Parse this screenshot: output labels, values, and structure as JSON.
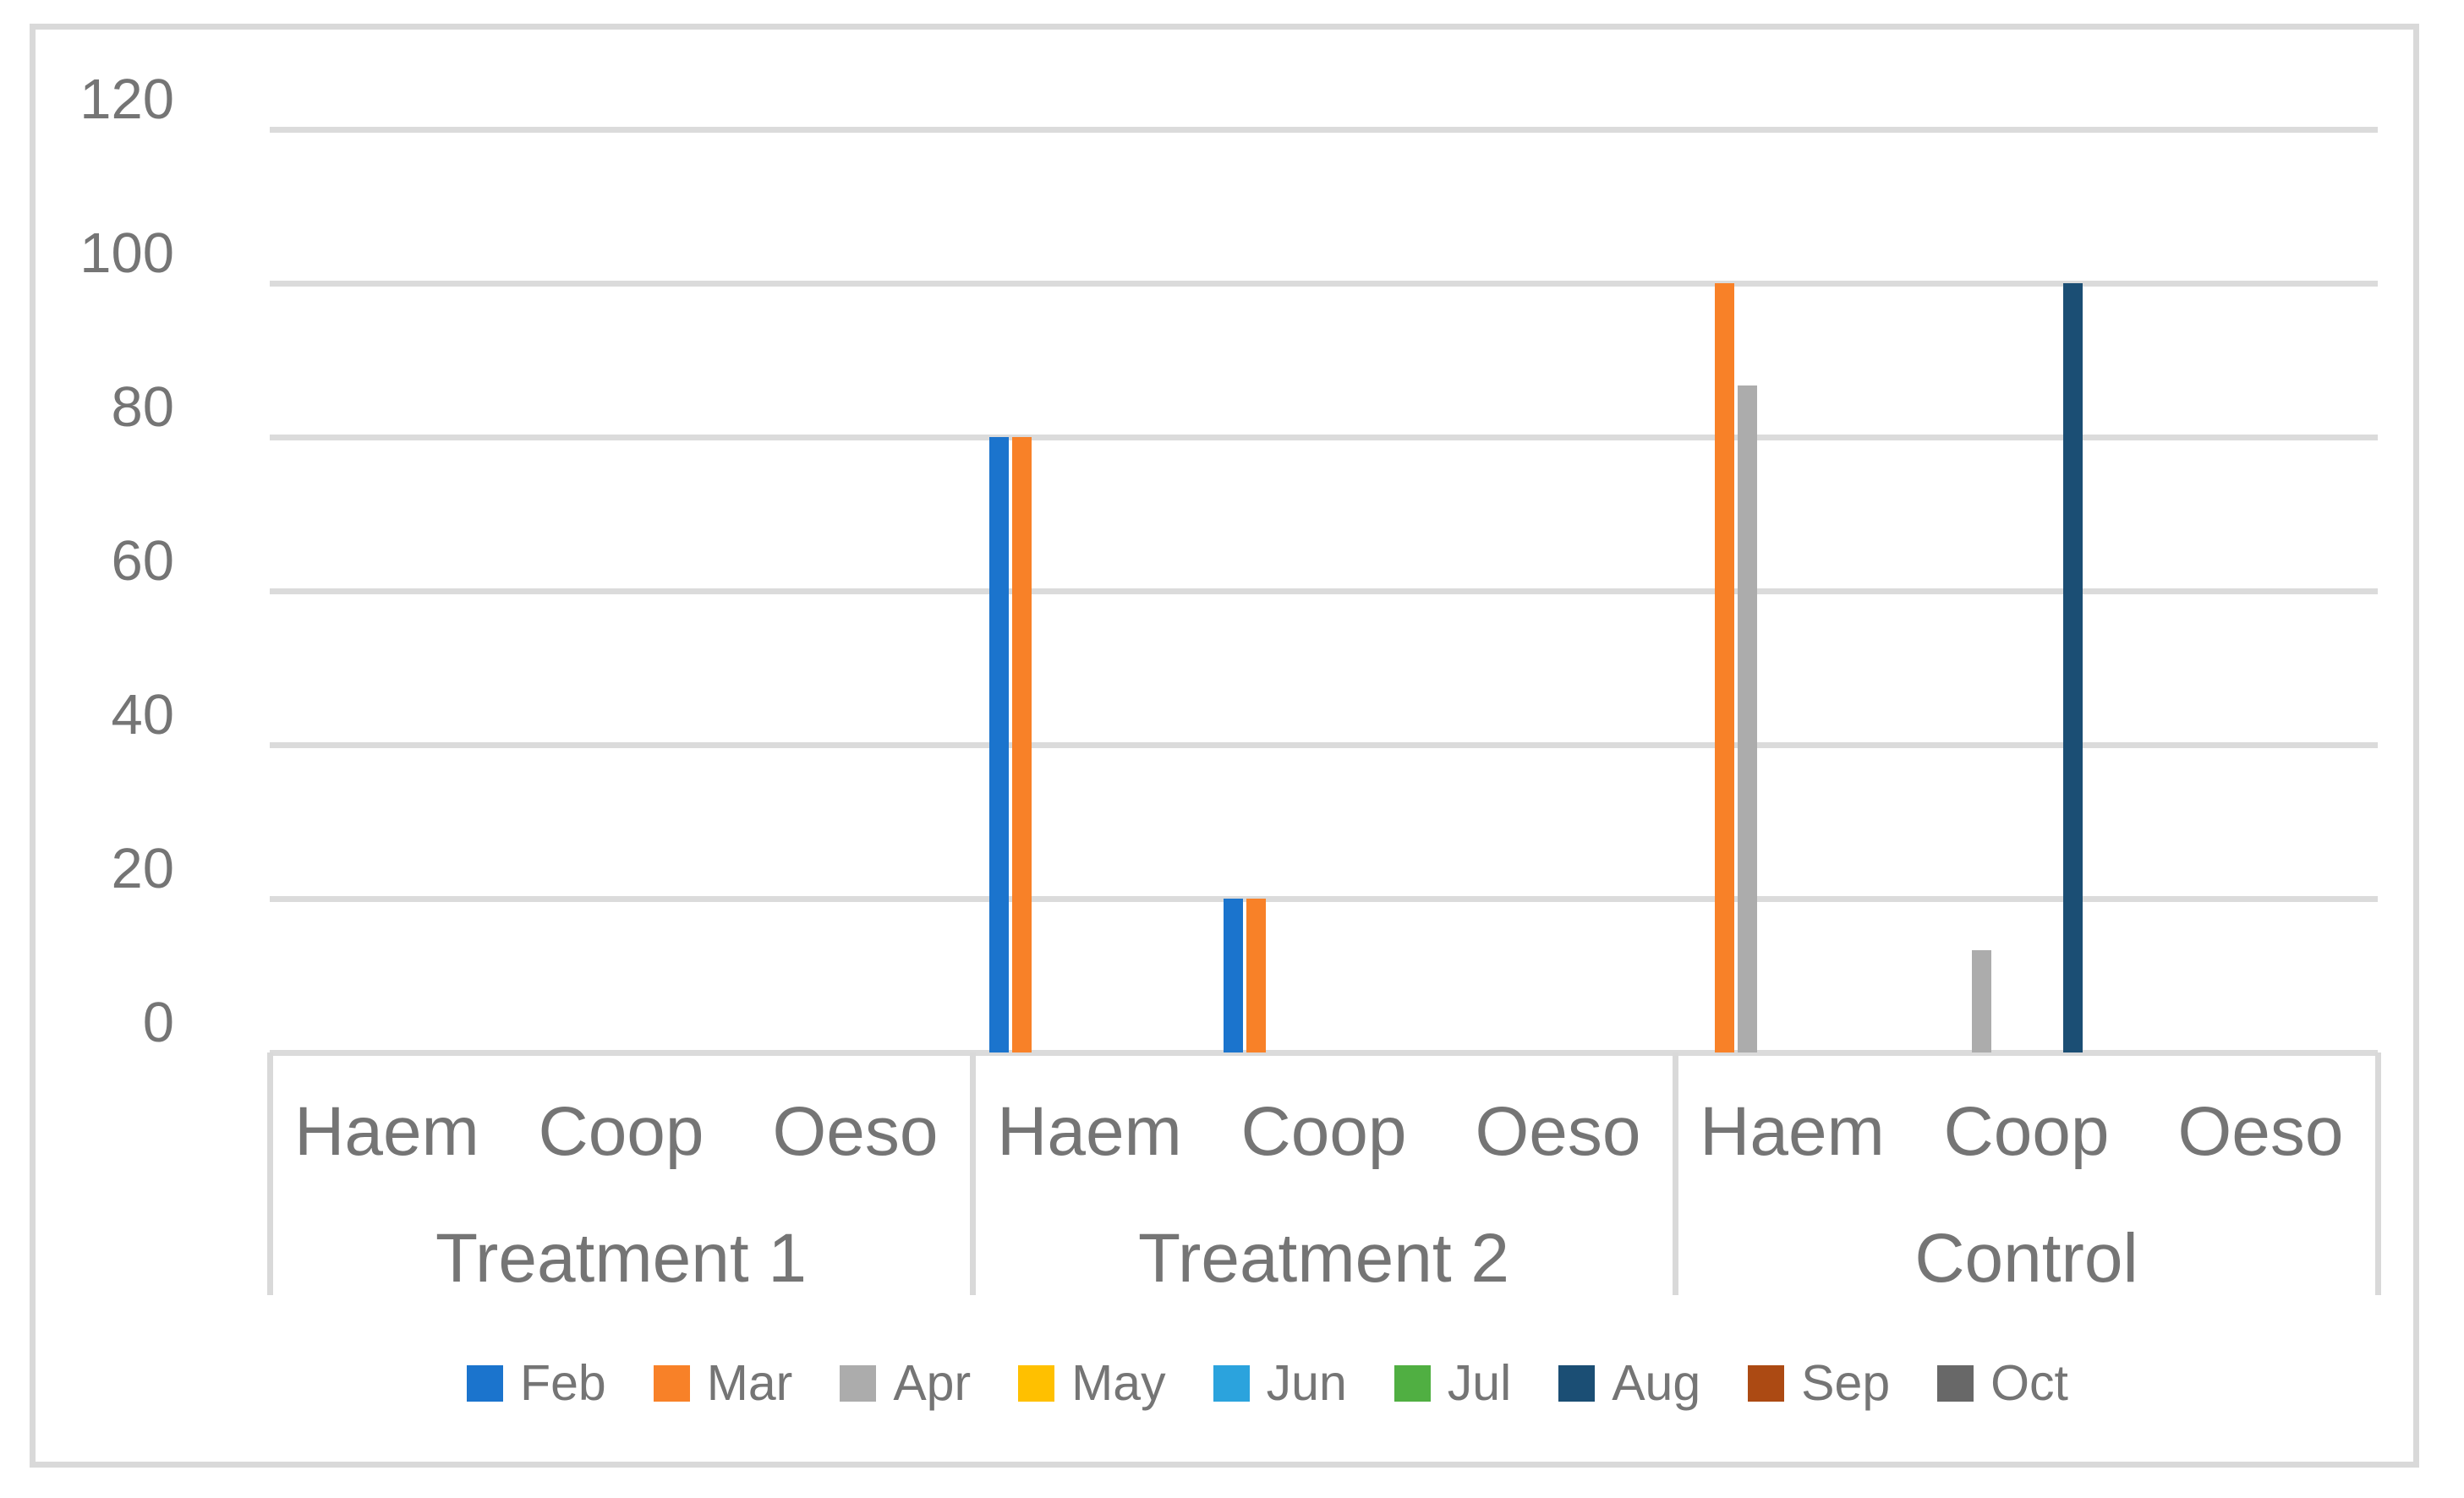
{
  "chart_data": {
    "type": "bar",
    "title": "",
    "xlabel": "",
    "ylabel": "",
    "ylim": [
      0,
      120
    ],
    "y_ticks": [
      120,
      100,
      80,
      60,
      40,
      20,
      0
    ],
    "grid": true,
    "legend_position": "bottom",
    "group_labels": [
      "Treatment 1",
      "Treatment 2",
      "Control"
    ],
    "category_labels": [
      "Haem",
      "Coop",
      "Oeso"
    ],
    "series": [
      {
        "name": "Feb",
        "color": "#1B74CD",
        "values": [
          [
            0,
            0,
            0
          ],
          [
            80,
            20,
            0
          ],
          [
            0,
            0,
            0
          ]
        ]
      },
      {
        "name": "Mar",
        "color": "#F88128",
        "values": [
          [
            0,
            0,
            0
          ],
          [
            80,
            20,
            0
          ],
          [
            100,
            0,
            0
          ]
        ]
      },
      {
        "name": "Apr",
        "color": "#ACACAC",
        "values": [
          [
            0,
            0,
            0
          ],
          [
            0,
            0,
            0
          ],
          [
            86.7,
            13.3,
            0
          ]
        ]
      },
      {
        "name": "May",
        "color": "#FFC000",
        "values": [
          [
            0,
            0,
            0
          ],
          [
            0,
            0,
            0
          ],
          [
            0,
            0,
            0
          ]
        ]
      },
      {
        "name": "Jun",
        "color": "#2BA3DD",
        "values": [
          [
            0,
            0,
            0
          ],
          [
            0,
            0,
            0
          ],
          [
            0,
            0,
            0
          ]
        ]
      },
      {
        "name": "Jul",
        "color": "#50AF42",
        "values": [
          [
            0,
            0,
            0
          ],
          [
            0,
            0,
            0
          ],
          [
            0,
            0,
            0
          ]
        ]
      },
      {
        "name": "Aug",
        "color": "#1B4E74",
        "values": [
          [
            0,
            0,
            0
          ],
          [
            0,
            0,
            0
          ],
          [
            0,
            100,
            0
          ]
        ]
      },
      {
        "name": "Sep",
        "color": "#AC4A13",
        "values": [
          [
            0,
            0,
            0
          ],
          [
            0,
            0,
            0
          ],
          [
            0,
            0,
            0
          ]
        ]
      },
      {
        "name": "Oct",
        "color": "#686868",
        "values": [
          [
            0,
            0,
            0
          ],
          [
            0,
            0,
            0
          ],
          [
            0,
            0,
            0
          ]
        ]
      }
    ]
  },
  "styles": {
    "gridline_color": "#DBDBDB",
    "axis_text_color": "#757575",
    "frame_border_color": "#D9D9D9",
    "background": "#FFFFFF"
  }
}
